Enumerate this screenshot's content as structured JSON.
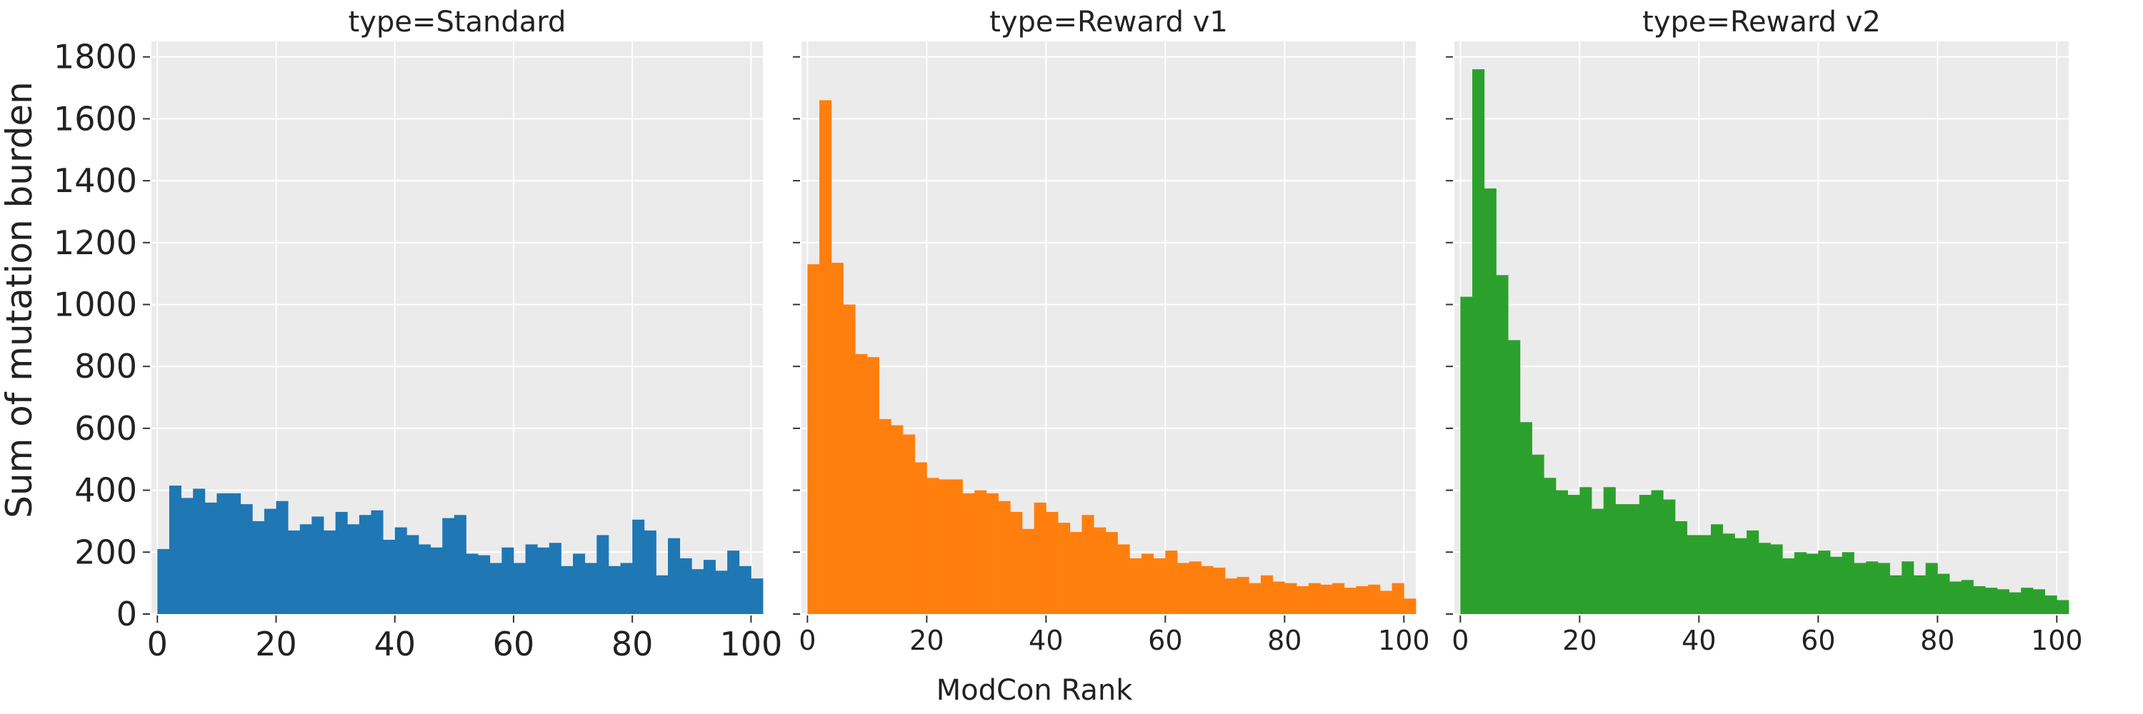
{
  "figure": {
    "ylabel": "Sum of mutation burden",
    "xlabel": "ModCon Rank"
  },
  "chart_data": [
    {
      "type": "bar",
      "title": "type=Standard",
      "color": "#1f77b4",
      "background": "#ebebeb",
      "grid": true,
      "xlim": [
        -1,
        102
      ],
      "ylim": [
        0,
        1850
      ],
      "xticks": [
        0,
        20,
        40,
        60,
        80,
        100
      ],
      "yticks": [
        0,
        200,
        400,
        600,
        800,
        1000,
        1200,
        1400,
        1600,
        1800
      ],
      "show_ytick_labels": true,
      "bin_width": 2,
      "bin_start": 0,
      "values": [
        210,
        415,
        375,
        405,
        360,
        390,
        390,
        355,
        300,
        340,
        365,
        270,
        290,
        315,
        270,
        330,
        290,
        320,
        335,
        240,
        280,
        255,
        225,
        215,
        310,
        320,
        195,
        190,
        165,
        215,
        165,
        225,
        215,
        230,
        155,
        195,
        165,
        255,
        155,
        165,
        305,
        270,
        125,
        245,
        180,
        145,
        175,
        140,
        205,
        155,
        115
      ]
    },
    {
      "type": "bar",
      "title": "type=Reward v1",
      "color": "#ff7f0e",
      "background": "#ebebeb",
      "grid": true,
      "xlim": [
        -1,
        102
      ],
      "ylim": [
        0,
        1850
      ],
      "xticks": [
        0,
        20,
        40,
        60,
        80,
        100
      ],
      "yticks": [
        0,
        200,
        400,
        600,
        800,
        1000,
        1200,
        1400,
        1600,
        1800
      ],
      "show_ytick_labels": false,
      "bin_width": 2,
      "bin_start": 0,
      "values": [
        1130,
        1660,
        1135,
        1000,
        840,
        830,
        630,
        610,
        580,
        490,
        440,
        435,
        435,
        390,
        400,
        390,
        365,
        330,
        275,
        360,
        330,
        295,
        265,
        320,
        280,
        265,
        225,
        180,
        195,
        180,
        205,
        165,
        170,
        155,
        150,
        115,
        120,
        100,
        125,
        105,
        100,
        90,
        100,
        95,
        100,
        85,
        90,
        95,
        75,
        100,
        50
      ]
    },
    {
      "type": "bar",
      "title": "type=Reward v2",
      "color": "#2ca02c",
      "background": "#ebebeb",
      "grid": true,
      "xlim": [
        -1,
        102
      ],
      "ylim": [
        0,
        1850
      ],
      "xticks": [
        0,
        20,
        40,
        60,
        80,
        100
      ],
      "yticks": [
        0,
        200,
        400,
        600,
        800,
        1000,
        1200,
        1400,
        1600,
        1800
      ],
      "show_ytick_labels": false,
      "bin_width": 2,
      "bin_start": 0,
      "values": [
        1025,
        1760,
        1375,
        1095,
        885,
        620,
        515,
        440,
        400,
        385,
        410,
        340,
        410,
        355,
        355,
        385,
        400,
        370,
        300,
        255,
        255,
        290,
        260,
        245,
        270,
        230,
        225,
        180,
        200,
        195,
        205,
        185,
        200,
        165,
        170,
        165,
        125,
        170,
        125,
        165,
        130,
        105,
        110,
        90,
        85,
        80,
        70,
        85,
        80,
        60,
        45
      ]
    }
  ]
}
